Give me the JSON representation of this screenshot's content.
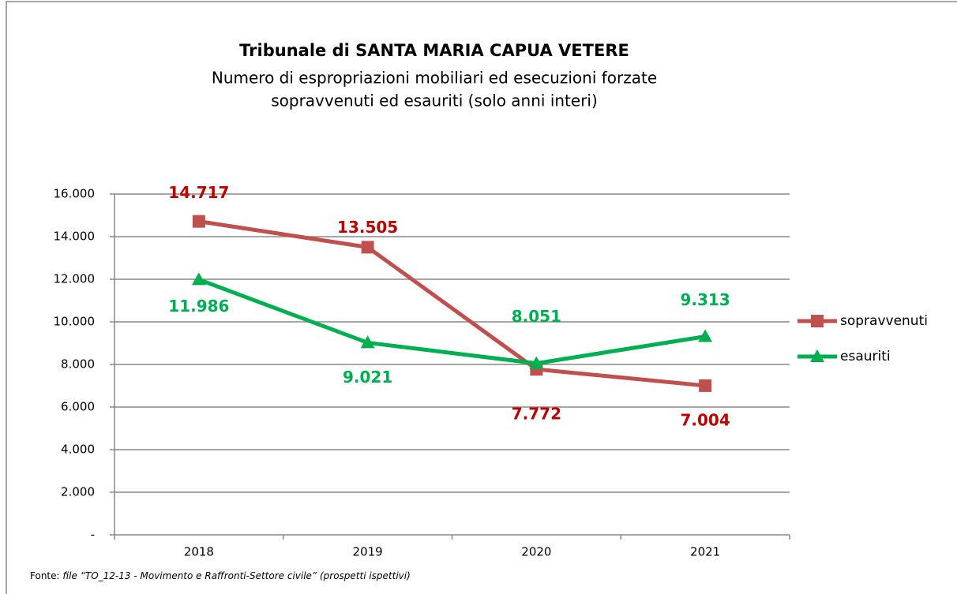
{
  "chart_data": {
    "type": "line",
    "title": "Tribunale di SANTA MARIA CAPUA VETERE",
    "subtitle": [
      "Numero di espropriazioni mobiliari ed esecuzioni forzate",
      "sopravvenuti ed esauriti (solo anni interi)"
    ],
    "categories": [
      "2018",
      "2019",
      "2020",
      "2021"
    ],
    "series": [
      {
        "name": "sopravvenuti",
        "color": "#c0504d",
        "label_color": "#c00000",
        "marker": "square",
        "values": [
          14717,
          13505,
          7772,
          7004
        ],
        "value_labels": [
          "14.717",
          "13.505",
          "7.772",
          "7.004"
        ]
      },
      {
        "name": "esauriti",
        "color": "#00b050",
        "label_color": "#00b050",
        "marker": "triangle",
        "values": [
          11986,
          9021,
          8051,
          9313
        ],
        "value_labels": [
          "11.986",
          "9.021",
          "8.051",
          "9.313"
        ]
      }
    ],
    "ylim": [
      0,
      16000
    ],
    "yticks": [
      {
        "value": 0,
        "label": "-"
      },
      {
        "value": 2000,
        "label": "2.000"
      },
      {
        "value": 4000,
        "label": "4.000"
      },
      {
        "value": 6000,
        "label": "6.000"
      },
      {
        "value": 8000,
        "label": "8.000"
      },
      {
        "value": 10000,
        "label": "10.000"
      },
      {
        "value": 12000,
        "label": "12.000"
      },
      {
        "value": 14000,
        "label": "14.000"
      },
      {
        "value": 16000,
        "label": "16.000"
      }
    ],
    "grid": true,
    "legend": "right",
    "footnote": {
      "label": "Fonte:",
      "text": "file “TO_12-13 - Movimento e Raffronti-Settore civile” (prospetti ispettivi)"
    }
  }
}
